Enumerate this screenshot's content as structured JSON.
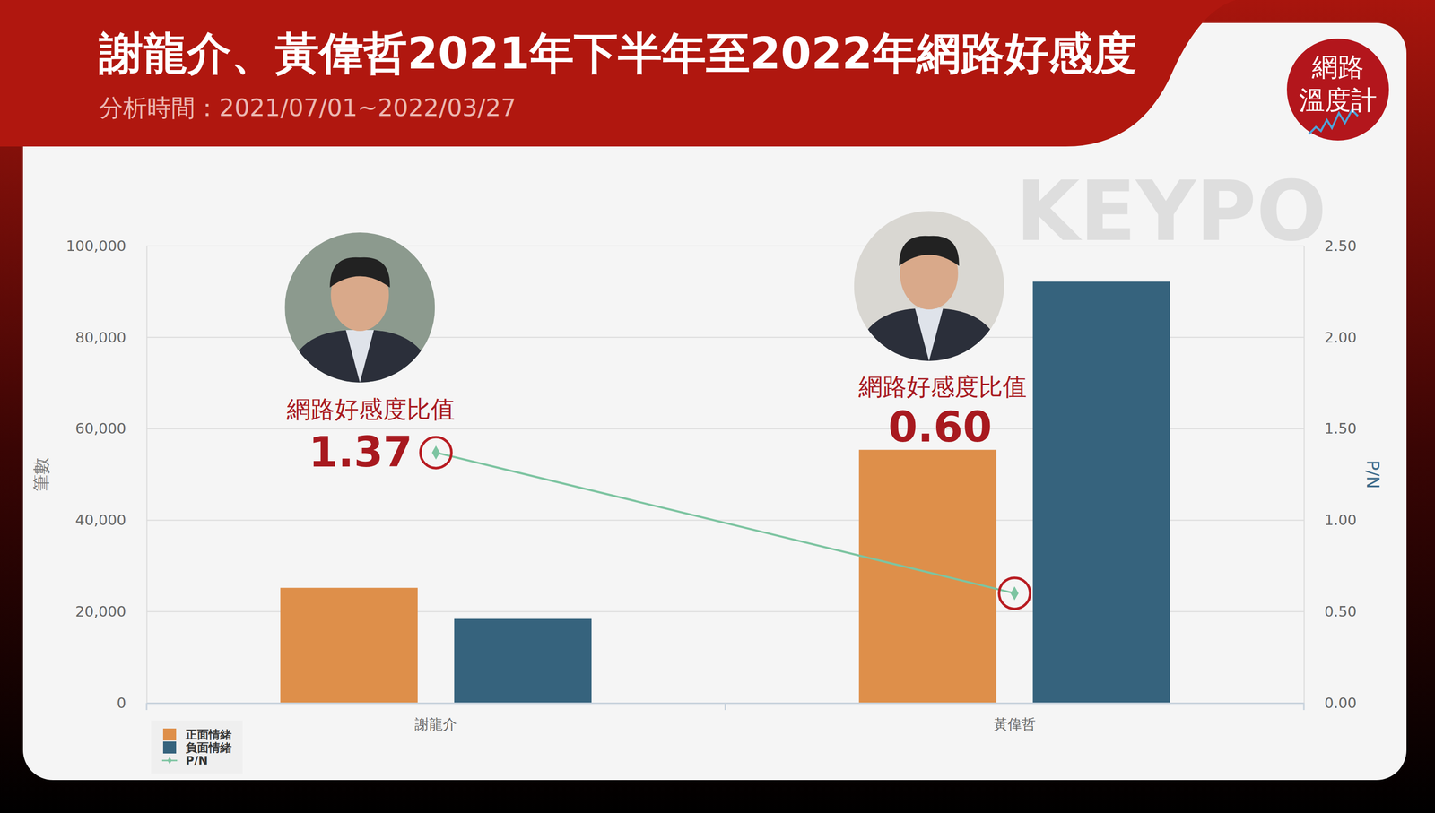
{
  "chart_data": {
    "type": "bar",
    "title": "謝龍介、黃偉哲2021年下半年至2022年網路好感度",
    "subtitle": "分析時間：2021/07/01~2022/03/27",
    "logo": [
      "網路",
      "溫度計"
    ],
    "watermark": "KEYPO",
    "annotations": [
      "網路好感度比值",
      "網路好感度比值"
    ],
    "categories": [
      "謝龍介",
      "黃偉哲"
    ],
    "ylabel": "筆數",
    "y2label": "P/N",
    "ylim": [
      0,
      100000
    ],
    "yticks": [
      0,
      {
        "value": 20000,
        "label": "20,000"
      },
      {
        "value": 40000,
        "label": "40,000"
      },
      {
        "value": 60000,
        "label": "60,000"
      },
      {
        "value": 80000,
        "label": "80,000"
      },
      {
        "value": 100000,
        "label": "100,000"
      }
    ],
    "y2lim": [
      0,
      2.5
    ],
    "y2ticks": [
      {
        "value": 0,
        "label": "0.00"
      },
      {
        "value": 0.5,
        "label": "0.50"
      },
      {
        "value": 1,
        "label": "1.00"
      },
      {
        "value": 1.5,
        "label": "1.50"
      },
      {
        "value": 2,
        "label": "2.00"
      },
      {
        "value": 2.5,
        "label": "2.50"
      }
    ],
    "grid": true,
    "legend": "bottom-left",
    "series": [
      {
        "name": "正面情緒",
        "type": "bar",
        "color": "#DE8F4A",
        "values": [
          25200,
          55400
        ]
      },
      {
        "name": "負面情緒",
        "type": "bar",
        "color": "#36637D",
        "values": [
          18400,
          92200
        ]
      },
      {
        "name": "P/N",
        "type": "line",
        "axis": "y2",
        "color": "#7DC4A1",
        "marker": "diamond",
        "data_labels": true,
        "values": [
          1.37,
          0.6
        ],
        "value_labels": [
          "1.37",
          "0.60"
        ]
      }
    ]
  }
}
